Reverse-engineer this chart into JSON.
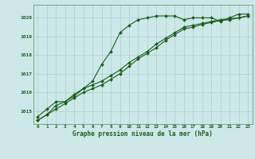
{
  "xlabel": "Graphe pression niveau de la mer (hPa)",
  "background_color": "#cce8e8",
  "line_color": "#1a5e1a",
  "grid_color": "#aacece",
  "xlim": [
    -0.5,
    23.5
  ],
  "ylim": [
    1014.3,
    1020.7
  ],
  "yticks": [
    1015,
    1016,
    1017,
    1018,
    1019,
    1020
  ],
  "xticks": [
    0,
    1,
    2,
    3,
    4,
    5,
    6,
    7,
    8,
    9,
    10,
    11,
    12,
    13,
    14,
    15,
    16,
    17,
    18,
    19,
    20,
    21,
    22,
    23
  ],
  "series": [
    [
      1014.7,
      1015.1,
      1015.5,
      1015.5,
      1015.8,
      1016.2,
      1016.6,
      1017.5,
      1018.2,
      1019.2,
      1019.6,
      1019.9,
      1020.0,
      1020.1,
      1020.1,
      1020.1,
      1019.9,
      1020.0,
      1020.0,
      1020.0,
      1019.8,
      1020.0,
      1020.2,
      1020.2
    ],
    [
      1014.5,
      1014.8,
      1015.3,
      1015.5,
      1015.9,
      1016.2,
      1016.4,
      1016.6,
      1016.9,
      1017.2,
      1017.6,
      1017.9,
      1018.2,
      1018.6,
      1018.9,
      1019.2,
      1019.5,
      1019.6,
      1019.7,
      1019.8,
      1019.9,
      1019.95,
      1020.0,
      1020.1
    ],
    [
      1014.5,
      1014.8,
      1015.1,
      1015.4,
      1015.7,
      1016.0,
      1016.2,
      1016.4,
      1016.7,
      1017.0,
      1017.4,
      1017.8,
      1018.1,
      1018.4,
      1018.8,
      1019.1,
      1019.4,
      1019.5,
      1019.65,
      1019.75,
      1019.85,
      1019.9,
      1020.0,
      1020.1
    ]
  ]
}
